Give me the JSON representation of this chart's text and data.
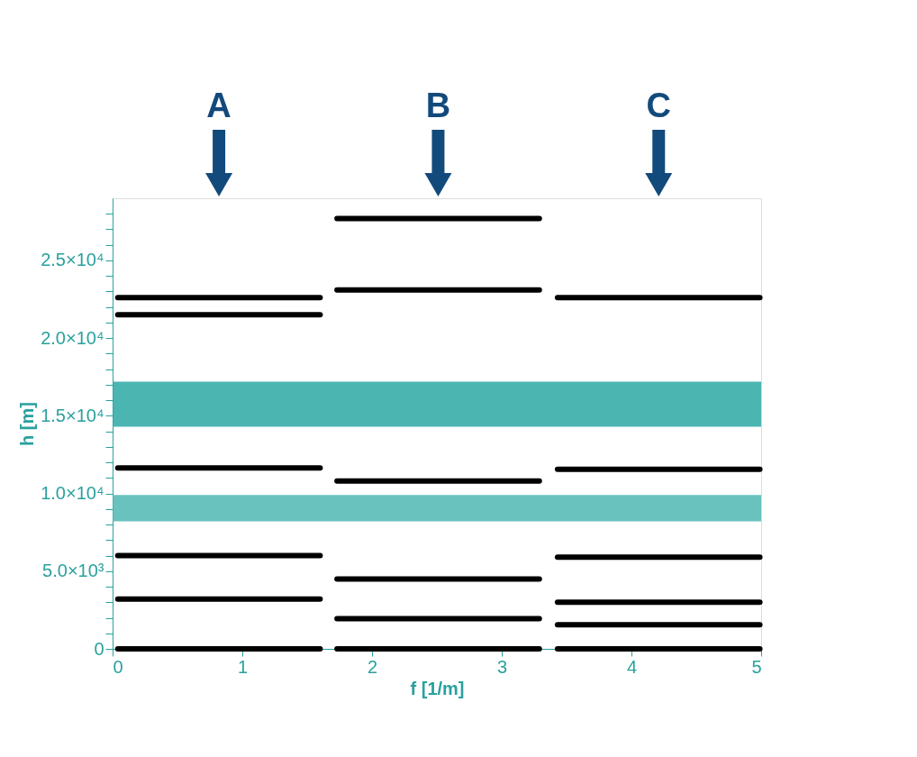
{
  "chart_data": {
    "type": "line",
    "xlabel": "f [1/m]",
    "ylabel": "h [m]",
    "xlim": [
      0,
      5
    ],
    "ylim": [
      0,
      29000
    ],
    "xticks": [
      0,
      1,
      2,
      3,
      4,
      5
    ],
    "yticks": [
      {
        "value": 0,
        "label": "0"
      },
      {
        "value": 1000,
        "label": null
      },
      {
        "value": 2000,
        "label": null
      },
      {
        "value": 3000,
        "label": null
      },
      {
        "value": 4000,
        "label": null
      },
      {
        "value": 5000,
        "label": "5.0×10³"
      },
      {
        "value": 6000,
        "label": null
      },
      {
        "value": 7000,
        "label": null
      },
      {
        "value": 8000,
        "label": null
      },
      {
        "value": 9000,
        "label": null
      },
      {
        "value": 10000,
        "label": "1.0×10⁴"
      },
      {
        "value": 11000,
        "label": null
      },
      {
        "value": 12000,
        "label": null
      },
      {
        "value": 13000,
        "label": null
      },
      {
        "value": 14000,
        "label": null
      },
      {
        "value": 15000,
        "label": "1.5×10⁴"
      },
      {
        "value": 16000,
        "label": null
      },
      {
        "value": 17000,
        "label": null
      },
      {
        "value": 18000,
        "label": null
      },
      {
        "value": 19000,
        "label": null
      },
      {
        "value": 20000,
        "label": "2.0×10⁴"
      },
      {
        "value": 21000,
        "label": null
      },
      {
        "value": 22000,
        "label": null
      },
      {
        "value": 23000,
        "label": null
      },
      {
        "value": 24000,
        "label": null
      },
      {
        "value": 25000,
        "label": "2.5×10⁴"
      },
      {
        "value": 26000,
        "label": null
      },
      {
        "value": 27000,
        "label": null
      },
      {
        "value": 28000,
        "label": null
      }
    ],
    "grid": false,
    "marker": "none",
    "line_style": "solid",
    "bands": [
      {
        "axis": "y",
        "from": 14300,
        "to": 17200,
        "color": "#2ca8a4"
      },
      {
        "axis": "y",
        "from": 8200,
        "to": 9900,
        "color": "#4fb7b3"
      }
    ],
    "annotations": [
      "A",
      "B",
      "C"
    ],
    "series": [
      {
        "color": "#000000",
        "x": [
          0.04,
          1.6
        ],
        "values": [
          22600,
          22600
        ]
      },
      {
        "color": "#000000",
        "x": [
          0.04,
          1.6
        ],
        "values": [
          21500,
          21500
        ]
      },
      {
        "color": "#000000",
        "x": [
          0.04,
          1.6
        ],
        "values": [
          11650,
          11650
        ]
      },
      {
        "color": "#000000",
        "x": [
          0.04,
          1.6
        ],
        "values": [
          6000,
          6000
        ]
      },
      {
        "color": "#000000",
        "x": [
          0.04,
          1.6
        ],
        "values": [
          3200,
          3200
        ]
      },
      {
        "color": "#000000",
        "x": [
          0.04,
          1.6
        ],
        "values": [
          0,
          0
        ]
      },
      {
        "color": "#000000",
        "x": [
          1.73,
          3.29
        ],
        "values": [
          27700,
          27700
        ]
      },
      {
        "color": "#000000",
        "x": [
          1.73,
          3.29
        ],
        "values": [
          23100,
          23100
        ]
      },
      {
        "color": "#000000",
        "x": [
          1.73,
          3.29
        ],
        "values": [
          10800,
          10800
        ]
      },
      {
        "color": "#000000",
        "x": [
          1.73,
          3.29
        ],
        "values": [
          4500,
          4500
        ]
      },
      {
        "color": "#000000",
        "x": [
          1.73,
          3.29
        ],
        "values": [
          1950,
          1950
        ]
      },
      {
        "color": "#000000",
        "x": [
          1.73,
          3.29
        ],
        "values": [
          0,
          0
        ]
      },
      {
        "color": "#000000",
        "x": [
          3.43,
          4.99
        ],
        "values": [
          22600,
          22600
        ]
      },
      {
        "color": "#000000",
        "x": [
          3.43,
          4.99
        ],
        "values": [
          11550,
          11550
        ]
      },
      {
        "color": "#000000",
        "x": [
          3.43,
          4.99
        ],
        "values": [
          5900,
          5900
        ]
      },
      {
        "color": "#000000",
        "x": [
          3.43,
          4.99
        ],
        "values": [
          3000,
          3000
        ]
      },
      {
        "color": "#000000",
        "x": [
          3.43,
          4.99
        ],
        "values": [
          1550,
          1550
        ]
      },
      {
        "color": "#000000",
        "x": [
          3.43,
          4.99
        ],
        "values": [
          0,
          0
        ]
      }
    ]
  }
}
